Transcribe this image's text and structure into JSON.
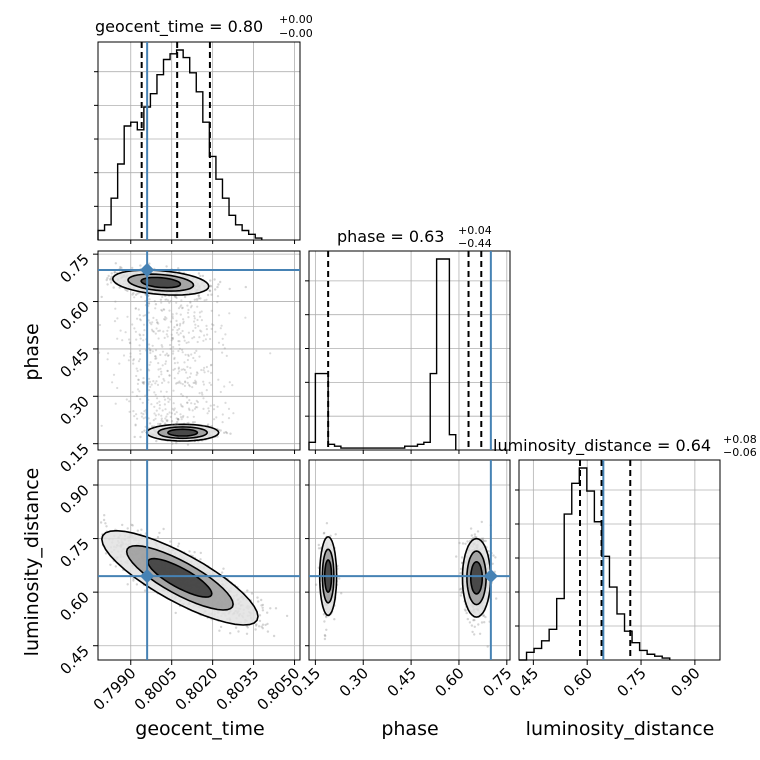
{
  "chart_data": {
    "type": "corner",
    "parameters": [
      "geocent_time",
      "phase",
      "luminosity_distance"
    ],
    "truths": {
      "geocent_time": 0.7996,
      "phase": 0.7,
      "luminosity_distance": 0.645
    },
    "titles": [
      {
        "param": "geocent_time",
        "text": "geocent_time = 0.80",
        "sup": "+0.00",
        "sub": "−0.00"
      },
      {
        "param": "phase",
        "text": "phase = 0.63",
        "sup": "+0.04",
        "sub": "−0.44"
      },
      {
        "param": "luminosity_distance",
        "text": "luminosity_distance = 0.64",
        "sup": "+0.08",
        "sub": "−0.06"
      }
    ],
    "axes": {
      "geocent_time": {
        "label": "geocent_time",
        "range": [
          0.7978,
          0.8052
        ],
        "ticks": [
          "0.7990",
          "0.8005",
          "0.8020",
          "0.8035",
          "0.8050"
        ]
      },
      "phase": {
        "label": "phase",
        "range": [
          0.13,
          0.76
        ],
        "ticks": [
          "0.15",
          "0.30",
          "0.45",
          "0.60",
          "0.75"
        ]
      },
      "luminosity_distance": {
        "label": "luminosity_distance",
        "range": [
          0.41,
          0.97
        ],
        "ticks": [
          "0.45",
          "0.60",
          "0.75",
          "0.90"
        ]
      }
    },
    "quantiles": {
      "geocent_time": [
        0.7994,
        0.8007,
        0.8019
      ],
      "phase": [
        0.19,
        0.63,
        0.67
      ],
      "luminosity_distance": [
        0.58,
        0.64,
        0.72
      ]
    },
    "hist_geocent_time": {
      "edges_start": 0.7978,
      "bin_width": 0.00024,
      "counts": [
        5,
        8,
        22,
        40,
        60,
        62,
        58,
        70,
        77,
        87,
        95,
        98,
        100,
        96,
        88,
        78,
        62,
        44,
        32,
        22,
        13,
        8,
        5,
        3,
        1
      ]
    },
    "hist_phase": {
      "edges_start": 0.13,
      "bin_width": 0.02,
      "counts": [
        4,
        40,
        40,
        3,
        2,
        1,
        1,
        1,
        1,
        1,
        1,
        1,
        1,
        1,
        1,
        2,
        2,
        3,
        4,
        40,
        100,
        100,
        8
      ]
    },
    "hist_luminosity_distance": {
      "edges_start": 0.41,
      "bin_width": 0.021,
      "counts": [
        0,
        4,
        6,
        10,
        16,
        32,
        76,
        92,
        100,
        88,
        72,
        54,
        38,
        24,
        15,
        9,
        5,
        3,
        2,
        1
      ]
    }
  }
}
